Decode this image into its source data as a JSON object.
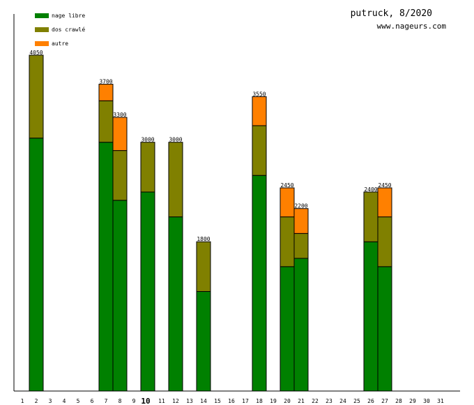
{
  "chart_data": {
    "type": "bar",
    "stacked": true,
    "title": "putruck, 8/2020",
    "subtitle": "www.nageurs.com",
    "xlabel": "",
    "ylabel": "",
    "ylim": [
      0,
      4050
    ],
    "highlight_day": "10",
    "legend_position": "top-left",
    "categories": [
      "1",
      "2",
      "3",
      "4",
      "5",
      "6",
      "7",
      "8",
      "9",
      "10",
      "11",
      "12",
      "13",
      "14",
      "15",
      "16",
      "17",
      "18",
      "19",
      "20",
      "21",
      "22",
      "23",
      "24",
      "25",
      "26",
      "27",
      "28",
      "29",
      "30",
      "31"
    ],
    "series": [
      {
        "name": "nage libre",
        "color": "#008000",
        "values": [
          0,
          3050,
          0,
          0,
          0,
          0,
          3000,
          2300,
          0,
          2400,
          0,
          2100,
          0,
          1200,
          0,
          0,
          0,
          2600,
          0,
          1500,
          1600,
          0,
          0,
          0,
          0,
          1800,
          1500,
          0,
          0,
          0,
          0
        ]
      },
      {
        "name": "dos crawlé",
        "color": "#808000",
        "values": [
          0,
          1000,
          0,
          0,
          0,
          0,
          500,
          600,
          0,
          600,
          0,
          900,
          0,
          600,
          0,
          0,
          0,
          600,
          0,
          600,
          300,
          0,
          0,
          0,
          0,
          600,
          600,
          0,
          0,
          0,
          0
        ]
      },
      {
        "name": "autre",
        "color": "#ff8000",
        "values": [
          0,
          0,
          0,
          0,
          0,
          0,
          200,
          400,
          0,
          0,
          0,
          0,
          0,
          0,
          0,
          0,
          0,
          350,
          0,
          350,
          300,
          0,
          0,
          0,
          0,
          0,
          350,
          0,
          0,
          0,
          0
        ]
      }
    ],
    "totals": [
      "",
      "4050",
      "",
      "",
      "",
      "",
      "3700",
      "3300",
      "",
      "3000",
      "",
      "3000",
      "",
      "1800",
      "",
      "",
      "",
      "3550",
      "",
      "2450",
      "2200",
      "",
      "",
      "",
      "",
      "2400",
      "2450",
      "",
      "",
      "",
      ""
    ]
  }
}
